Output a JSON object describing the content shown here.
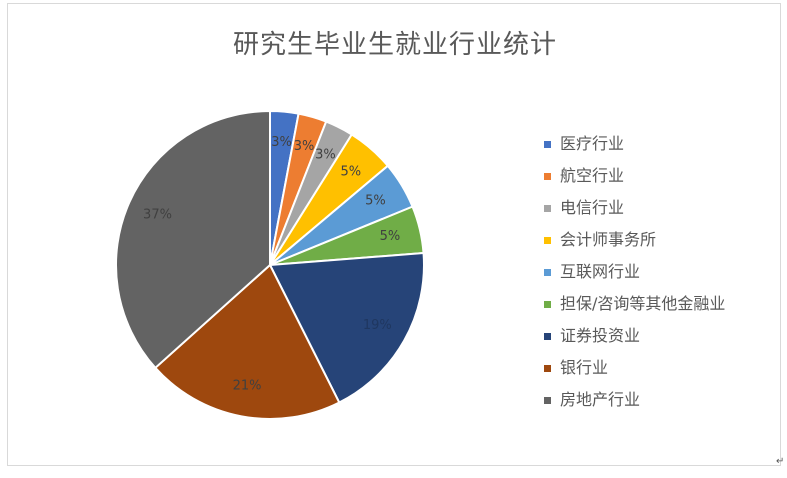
{
  "chart_data": {
    "type": "pie",
    "title": "研究生毕业生就业行业统计",
    "categories": [
      "医疗行业",
      "航空行业",
      "电信行业",
      "会计师事务所",
      "互联网行业",
      "担保/咨询等其他金融业",
      "证券投资业",
      "银行业",
      "房地产行业"
    ],
    "values": [
      3,
      3,
      3,
      5,
      5,
      5,
      19,
      21,
      37
    ],
    "data_labels": [
      "3%",
      "3%",
      "3%",
      "5%",
      "5%",
      "5%",
      "19%",
      "21%",
      "37%"
    ],
    "colors": [
      "#4472c4",
      "#ed7d31",
      "#a5a5a5",
      "#ffc000",
      "#5b9bd5",
      "#70ad47",
      "#264478",
      "#9e480e",
      "#636363"
    ],
    "legend_position": "right"
  },
  "return_mark": "↵"
}
